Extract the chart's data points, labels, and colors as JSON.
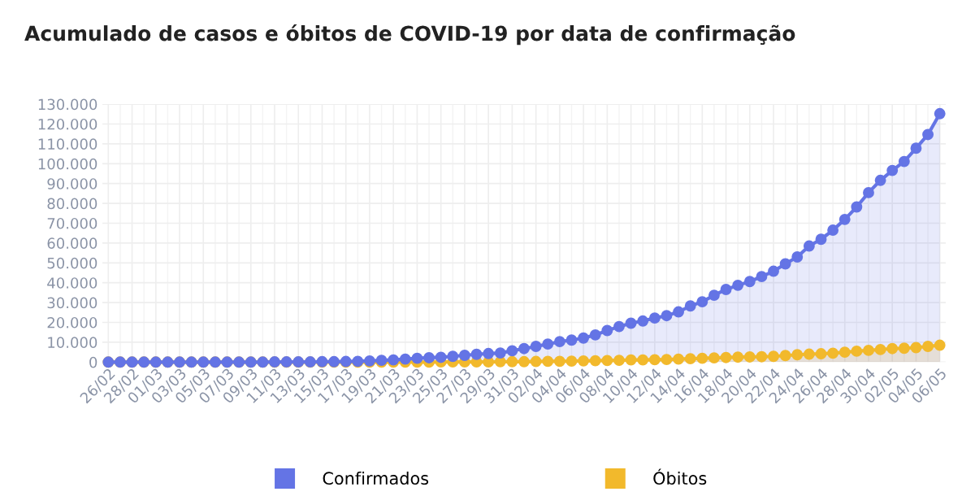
{
  "chart_data": {
    "type": "area",
    "title": "Acumulado de casos e óbitos de COVID-19 por data de confirmação",
    "categories": [
      "26/02",
      null,
      "28/02",
      null,
      "01/03",
      null,
      "03/03",
      null,
      "05/03",
      null,
      "07/03",
      null,
      "09/03",
      null,
      "11/03",
      null,
      "13/03",
      null,
      "15/03",
      null,
      "17/03",
      null,
      "19/03",
      null,
      "21/03",
      null,
      "23/03",
      null,
      "25/03",
      null,
      "27/03",
      null,
      "29/03",
      null,
      "31/03",
      null,
      "02/04",
      null,
      "04/04",
      null,
      "06/04",
      null,
      "08/04",
      null,
      "10/04",
      null,
      "12/04",
      null,
      "14/04",
      null,
      "16/04",
      null,
      "18/04",
      null,
      "20/04",
      null,
      "22/04",
      null,
      "24/04",
      null,
      "26/04",
      null,
      "28/04",
      null,
      "30/04",
      null,
      "02/05",
      null,
      "04/05",
      null,
      "06/05"
    ],
    "series": [
      {
        "name": "Confirmados",
        "color": "#6474e5",
        "values": [
          0,
          0,
          0,
          0,
          0,
          0,
          0,
          0,
          0,
          0,
          0,
          0,
          0,
          0,
          100,
          100,
          100,
          100,
          200,
          200,
          300,
          400,
          600,
          900,
          1100,
          1500,
          1900,
          2200,
          2400,
          2900,
          3400,
          3900,
          4300,
          4600,
          5700,
          6800,
          7900,
          9100,
          10300,
          11100,
          12100,
          13700,
          15900,
          17900,
          19600,
          20700,
          22200,
          23400,
          25300,
          28300,
          30400,
          33700,
          36600,
          38700,
          40600,
          43100,
          45800,
          49500,
          53000,
          58500,
          61900,
          66500,
          71900,
          78200,
          85400,
          91600,
          96600,
          101100,
          107800,
          114700,
          125200
        ]
      },
      {
        "name": "Óbitos",
        "color": "#f2b92c",
        "values": [
          0,
          0,
          0,
          0,
          0,
          0,
          0,
          0,
          0,
          0,
          0,
          0,
          0,
          0,
          0,
          0,
          0,
          0,
          0,
          0,
          0,
          0,
          0,
          0,
          0,
          0,
          0,
          0,
          100,
          100,
          100,
          100,
          100,
          200,
          200,
          200,
          300,
          400,
          400,
          500,
          600,
          700,
          800,
          900,
          1100,
          1100,
          1200,
          1300,
          1500,
          1700,
          1900,
          2100,
          2300,
          2500,
          2600,
          2700,
          2900,
          3300,
          3700,
          4000,
          4200,
          4500,
          5000,
          5500,
          5900,
          6300,
          6800,
          7000,
          7300,
          7900,
          8500
        ]
      }
    ],
    "ylim": [
      0,
      130000
    ],
    "yticks": [
      {
        "value": 0,
        "label": "0"
      },
      {
        "value": 10000,
        "label": "10.000"
      },
      {
        "value": 20000,
        "label": "20.000"
      },
      {
        "value": 30000,
        "label": "30.000"
      },
      {
        "value": 40000,
        "label": "40.000"
      },
      {
        "value": 50000,
        "label": "50.000"
      },
      {
        "value": 60000,
        "label": "60.000"
      },
      {
        "value": 70000,
        "label": "70.000"
      },
      {
        "value": 80000,
        "label": "80.000"
      },
      {
        "value": 90000,
        "label": "90.000"
      },
      {
        "value": 100000,
        "label": "100.000"
      },
      {
        "value": 110000,
        "label": "110.000"
      },
      {
        "value": 120000,
        "label": "120.000"
      },
      {
        "value": 130000,
        "label": "130.000"
      }
    ],
    "grid": true,
    "legend": "bottom",
    "marker": "circle",
    "line_style": "solid"
  }
}
